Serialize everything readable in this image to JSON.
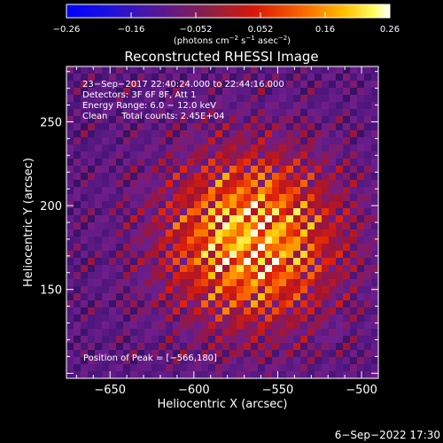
{
  "chart_data": {
    "type": "heatmap",
    "title": "Reconstructed RHESSI Image",
    "xlabel": "Heliocentric X (arcsec)",
    "ylabel": "Heliocentric Y (arcsec)",
    "xlim": [
      -676,
      -490
    ],
    "ylim": [
      97,
      283
    ],
    "xticks": [
      {
        "value": -650,
        "label": "−650"
      },
      {
        "value": -600,
        "label": "−600"
      },
      {
        "value": -550,
        "label": "−550"
      },
      {
        "value": -500,
        "label": "−500"
      }
    ],
    "yticks": [
      {
        "value": 150,
        "label": "150"
      },
      {
        "value": 200,
        "label": "200"
      },
      {
        "value": 250,
        "label": "250"
      }
    ],
    "colorbar": {
      "min": -0.26,
      "max": 0.26,
      "ticks": [
        {
          "value": -0.26,
          "label": "−0.26"
        },
        {
          "value": -0.156,
          "label": "−0.16"
        },
        {
          "value": -0.052,
          "label": "−0.052"
        },
        {
          "value": 0.052,
          "label": "0.052"
        },
        {
          "value": 0.156,
          "label": "0.16"
        },
        {
          "value": 0.26,
          "label": "0.26"
        }
      ],
      "unit_parts": [
        "(photons cm",
        "−2",
        " s",
        "−1",
        " asec",
        "−2",
        ")"
      ]
    },
    "annotations": [
      "23−Sep−2017 22:40:24.000 to 22:44:16.000",
      "Detectors: 3F 6F 8F, Att 1",
      "Energy Range: 6.0 − 12.0 keV",
      "Clean     Total counts: 2.45E+04"
    ],
    "peak_label": "Position of Peak = [−566,180]",
    "peak": [
      -566,
      180
    ],
    "grid": false
  },
  "footer": {
    "timestamp": "6−Sep−2022 17:30"
  }
}
